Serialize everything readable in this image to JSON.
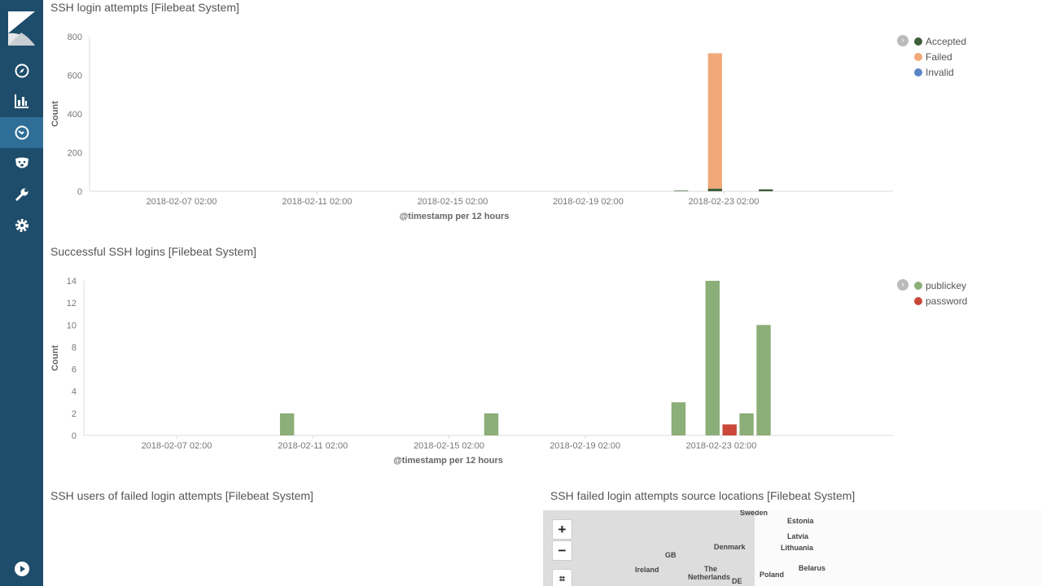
{
  "sidebar": {
    "items": [
      {
        "name": "discover",
        "icon": "compass-icon"
      },
      {
        "name": "visualize",
        "icon": "bar-chart-icon"
      },
      {
        "name": "dashboard",
        "icon": "dashboard-icon",
        "active": true
      },
      {
        "name": "timelion",
        "icon": "bear-icon"
      },
      {
        "name": "dev-tools",
        "icon": "wrench-icon"
      },
      {
        "name": "management",
        "icon": "gear-icon"
      }
    ],
    "bottom_icon": "play-icon"
  },
  "panels": {
    "p1_title": "SSH login attempts [Filebeat System]",
    "p2_title": "Successful SSH logins [Filebeat System]",
    "p3_title": "SSH users of failed login attempts [Filebeat System]",
    "p4_title": "SSH failed login attempts source locations [Filebeat System]"
  },
  "map": {
    "zoom_in": "+",
    "zoom_out": "−",
    "labels": [
      "Sweden",
      "Estonia",
      "Latvia",
      "Denmark",
      "Lithuania",
      "GB",
      "Belarus",
      "Ireland",
      "The",
      "Netherlands",
      "Poland",
      "DE"
    ]
  },
  "chart_data": [
    {
      "type": "bar",
      "stacked": true,
      "title": "SSH login attempts [Filebeat System]",
      "xlabel": "@timestamp per 12 hours",
      "ylabel": "Count",
      "ylim": [
        0,
        800
      ],
      "yticks": [
        0,
        200,
        400,
        600,
        800
      ],
      "xticks": [
        "2018-02-07 02:00",
        "2018-02-11 02:00",
        "2018-02-15 02:00",
        "2018-02-19 02:00",
        "2018-02-23 02:00"
      ],
      "buckets": [
        "2018-02-21 14:00",
        "2018-02-22 14:00",
        "2018-02-24 02:00"
      ],
      "series": [
        {
          "name": "Accepted",
          "color": "#3f5f3a",
          "values": [
            3,
            14,
            10
          ]
        },
        {
          "name": "Failed",
          "color": "#f1a97a",
          "values": [
            0,
            700,
            0
          ]
        },
        {
          "name": "Invalid",
          "color": "#5b85c7",
          "values": [
            0,
            0,
            0
          ]
        }
      ]
    },
    {
      "type": "bar",
      "stacked": true,
      "title": "Successful SSH logins [Filebeat System]",
      "xlabel": "@timestamp per 12 hours",
      "ylabel": "Count",
      "ylim": [
        0,
        14
      ],
      "yticks": [
        0,
        2,
        4,
        6,
        8,
        10,
        12,
        14
      ],
      "xticks": [
        "2018-02-07 02:00",
        "2018-02-11 02:00",
        "2018-02-15 02:00",
        "2018-02-19 02:00",
        "2018-02-23 02:00"
      ],
      "buckets": [
        "2018-02-10 02:00",
        "2018-02-16 02:00",
        "2018-02-21 14:00",
        "2018-02-22 14:00",
        "2018-02-23 02:00",
        "2018-02-23 14:00",
        "2018-02-24 02:00"
      ],
      "series": [
        {
          "name": "publickey",
          "color": "#8cae78",
          "values": [
            2,
            2,
            3,
            14,
            0,
            2,
            10
          ]
        },
        {
          "name": "password",
          "color": "#c9483a",
          "values": [
            0,
            0,
            0,
            0,
            1,
            0,
            0
          ]
        }
      ]
    }
  ]
}
